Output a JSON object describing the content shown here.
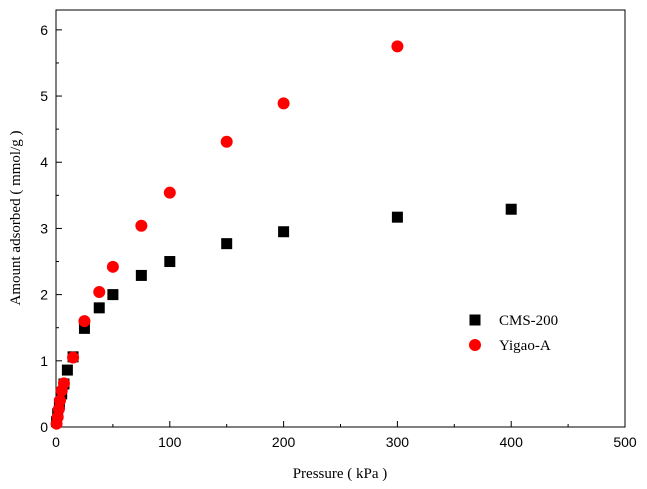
{
  "chart_data": {
    "type": "scatter",
    "title": "",
    "xlabel": "Pressure ( kPa )",
    "ylabel": "Amount adsorbed ( mmol/g )",
    "xlim": [
      0,
      500
    ],
    "ylim": [
      0,
      6.3
    ],
    "xticks": [
      0,
      100,
      200,
      300,
      400,
      500
    ],
    "yticks": [
      0,
      1,
      2,
      3,
      4,
      5,
      6
    ],
    "grid": false,
    "legend_position": "center-right",
    "series": [
      {
        "name": "CMS-200",
        "marker": "square",
        "color": "#000000",
        "points": [
          [
            0.5,
            0.08
          ],
          [
            1.5,
            0.2
          ],
          [
            3,
            0.35
          ],
          [
            5,
            0.5
          ],
          [
            7,
            0.65
          ],
          [
            10,
            0.86
          ],
          [
            15,
            1.06
          ],
          [
            25,
            1.49
          ],
          [
            38,
            1.8
          ],
          [
            50,
            2.0
          ],
          [
            75,
            2.29
          ],
          [
            100,
            2.5
          ],
          [
            150,
            2.77
          ],
          [
            200,
            2.95
          ],
          [
            300,
            3.17
          ],
          [
            400,
            3.29
          ]
        ]
      },
      {
        "name": "Yigao-A",
        "marker": "circle",
        "color": "#ff0000",
        "points": [
          [
            0.5,
            0.05
          ],
          [
            1.5,
            0.15
          ],
          [
            2.5,
            0.27
          ],
          [
            3.5,
            0.4
          ],
          [
            5,
            0.55
          ],
          [
            7,
            0.66
          ],
          [
            15,
            1.05
          ],
          [
            25,
            1.6
          ],
          [
            38,
            2.04
          ],
          [
            50,
            2.42
          ],
          [
            75,
            3.04
          ],
          [
            100,
            3.54
          ],
          [
            150,
            4.31
          ],
          [
            200,
            4.89
          ],
          [
            300,
            5.75
          ]
        ]
      }
    ]
  }
}
